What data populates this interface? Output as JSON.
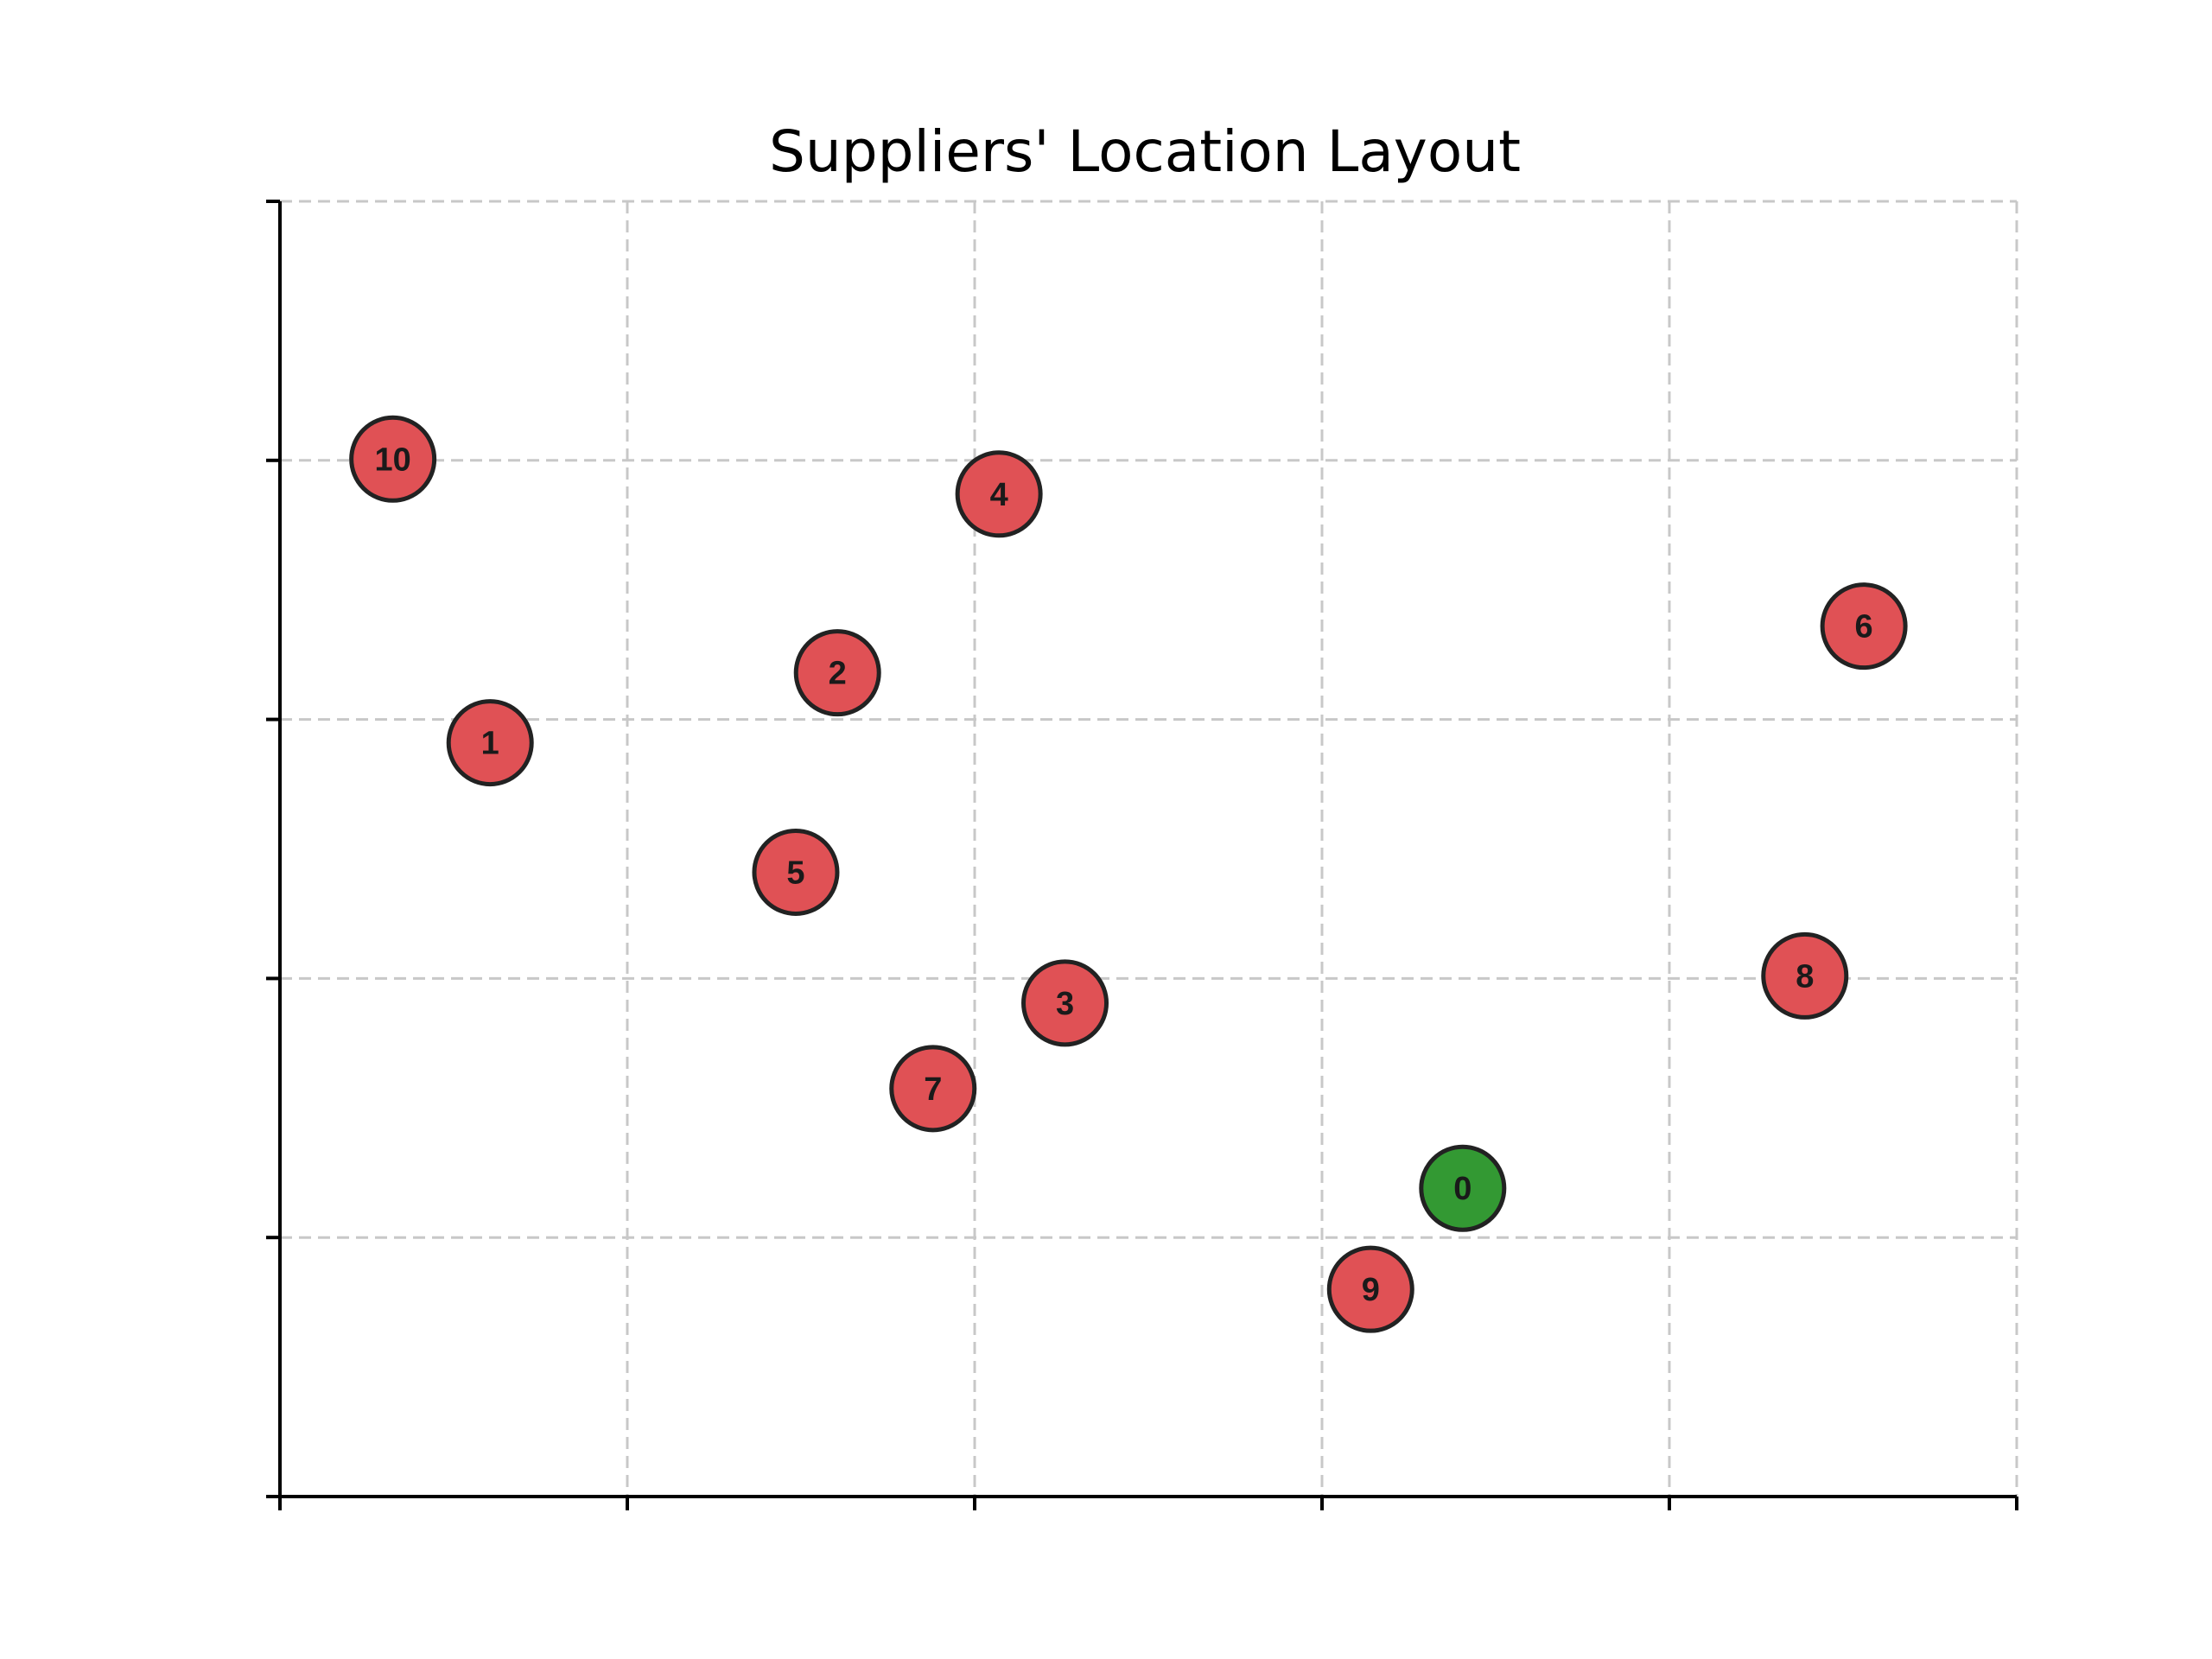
{
  "chart_data": {
    "type": "scatter",
    "title": "Suppliers' Location Layout",
    "xlabel": "",
    "ylabel": "",
    "xlim": [
      0,
      100
    ],
    "ylim": [
      0,
      100
    ],
    "x_ticks": [
      0,
      20,
      40,
      60,
      80,
      100
    ],
    "y_ticks": [
      0,
      20,
      40,
      60,
      80,
      100
    ],
    "grid": true,
    "colors": {
      "depot": "#339933",
      "supplier": "#e05155"
    },
    "points": [
      {
        "label": "0",
        "x": 68.1,
        "y": 23.8,
        "kind": "depot"
      },
      {
        "label": "1",
        "x": 12.1,
        "y": 58.2,
        "kind": "supplier"
      },
      {
        "label": "2",
        "x": 32.1,
        "y": 63.6,
        "kind": "supplier"
      },
      {
        "label": "3",
        "x": 45.2,
        "y": 38.1,
        "kind": "supplier"
      },
      {
        "label": "4",
        "x": 41.4,
        "y": 77.4,
        "kind": "supplier"
      },
      {
        "label": "5",
        "x": 29.7,
        "y": 48.2,
        "kind": "supplier"
      },
      {
        "label": "6",
        "x": 91.2,
        "y": 67.2,
        "kind": "supplier"
      },
      {
        "label": "7",
        "x": 37.6,
        "y": 31.5,
        "kind": "supplier"
      },
      {
        "label": "8",
        "x": 87.8,
        "y": 40.2,
        "kind": "supplier"
      },
      {
        "label": "9",
        "x": 62.8,
        "y": 16.0,
        "kind": "supplier"
      },
      {
        "label": "10",
        "x": 6.5,
        "y": 80.1,
        "kind": "supplier"
      }
    ]
  }
}
